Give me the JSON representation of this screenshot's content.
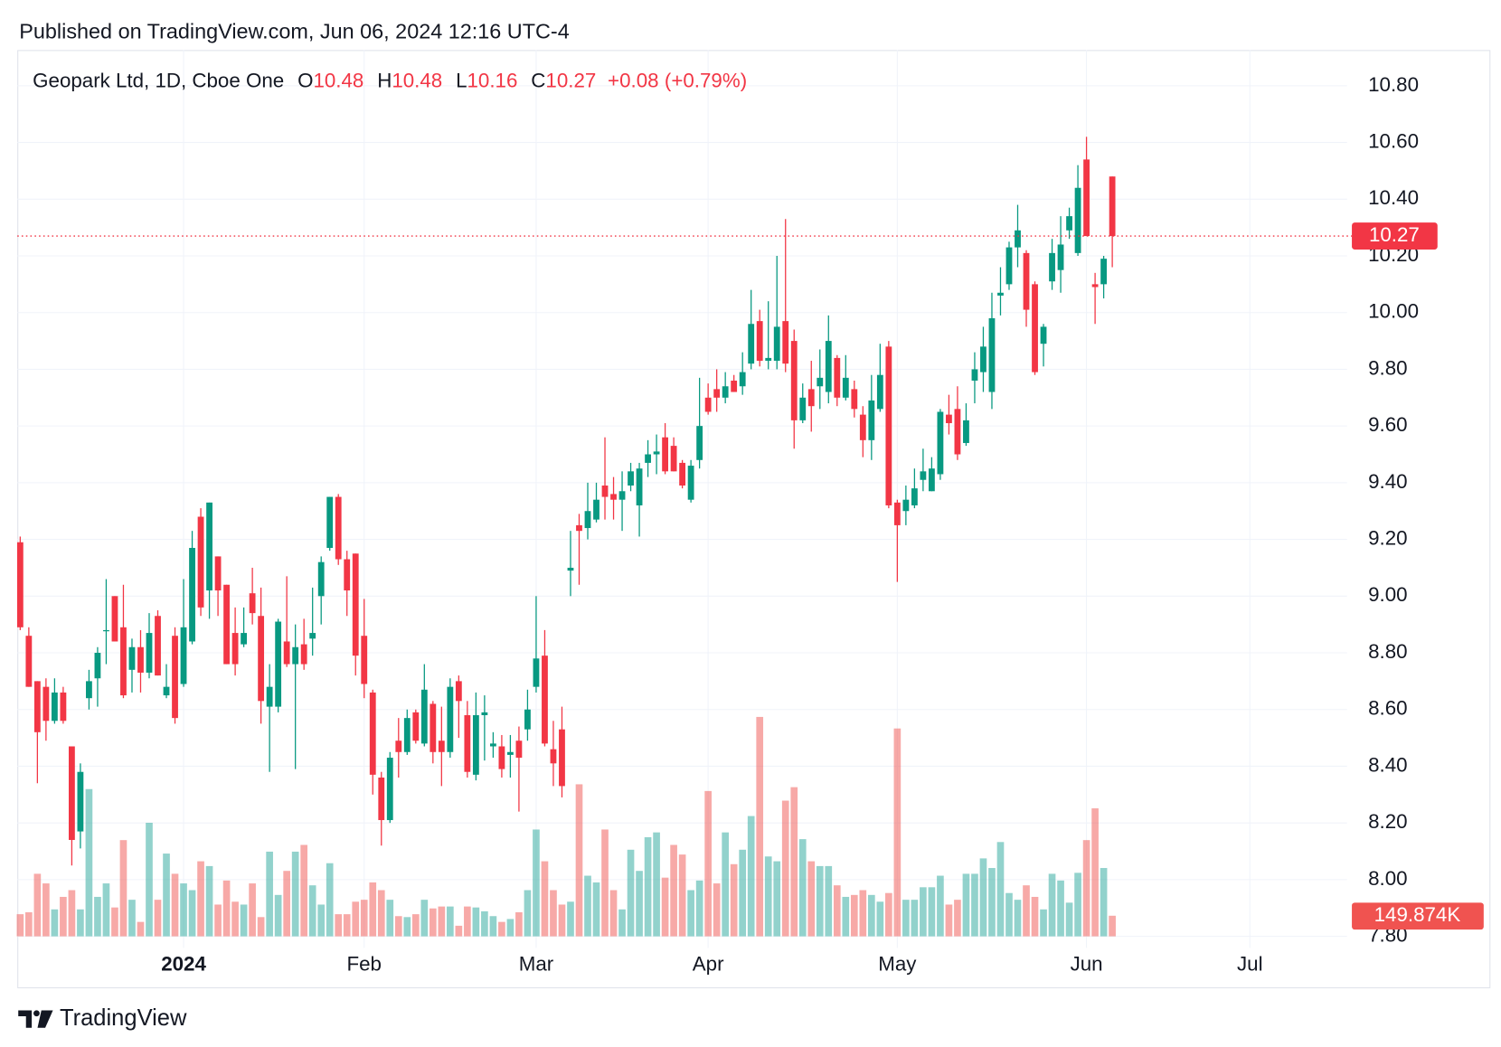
{
  "header": "Published on TradingView.com, Jun 06, 2024 12:16 UTC-4",
  "footer": "TradingView",
  "chart_data": {
    "type": "candlestick",
    "legend": {
      "name": "Geopark Ltd, 1D, Cboe One",
      "items": [
        {
          "label": "O",
          "value": 10.48
        },
        {
          "label": "H",
          "value": 10.48
        },
        {
          "label": "L",
          "value": 10.16
        },
        {
          "label": "C",
          "value": 10.27
        }
      ],
      "change": "+0.08",
      "change_percent": "(+0.79%)"
    },
    "last_price": 10.27,
    "ylim": [
      7.8,
      10.926
    ],
    "yticks": [
      {
        "value": 7.8,
        "label": "7.80"
      },
      {
        "value": 8,
        "label": "8.00"
      },
      {
        "value": 8.2,
        "label": "8.20"
      },
      {
        "value": 8.4,
        "label": "8.40"
      },
      {
        "value": 8.6,
        "label": "8.60"
      },
      {
        "value": 8.8,
        "label": "8.80"
      },
      {
        "value": 9,
        "label": "9.00"
      },
      {
        "value": 9.2,
        "label": "9.20"
      },
      {
        "value": 9.4,
        "label": "9.40"
      },
      {
        "value": 9.6,
        "label": "9.60"
      },
      {
        "value": 9.8,
        "label": "9.80"
      },
      {
        "value": 10,
        "label": "10.00"
      },
      {
        "value": 10.2,
        "label": "10.20"
      },
      {
        "value": 10.4,
        "label": "10.40"
      },
      {
        "value": 10.6,
        "label": "10.60"
      },
      {
        "value": 10.8,
        "label": "10.80"
      }
    ],
    "y2lim": [
      0,
      6447000
    ],
    "grid": true,
    "categories": [
      null,
      null,
      null,
      null,
      null,
      null,
      null,
      null,
      null,
      null,
      null,
      null,
      null,
      null,
      null,
      null,
      null,
      null,
      null,
      "2024",
      null,
      null,
      null,
      null,
      null,
      null,
      null,
      null,
      null,
      null,
      null,
      null,
      null,
      null,
      null,
      null,
      null,
      null,
      null,
      null,
      "Feb",
      null,
      null,
      null,
      null,
      null,
      null,
      null,
      null,
      null,
      null,
      null,
      null,
      null,
      null,
      null,
      null,
      null,
      null,
      null,
      "Mar",
      null,
      null,
      null,
      null,
      null,
      null,
      null,
      null,
      null,
      null,
      null,
      null,
      null,
      null,
      null,
      null,
      null,
      null,
      null,
      "Apr",
      null,
      null,
      null,
      null,
      null,
      null,
      null,
      null,
      null,
      null,
      null,
      null,
      null,
      null,
      null,
      null,
      null,
      null,
      null,
      null,
      null,
      "May",
      null,
      null,
      null,
      null,
      null,
      null,
      null,
      null,
      null,
      null,
      null,
      null,
      null,
      null,
      null,
      null,
      null,
      null,
      null,
      null,
      null,
      "Jun",
      null,
      null,
      null,
      null,
      null,
      null,
      null,
      null,
      null,
      null,
      null,
      null,
      null,
      null,
      null,
      null,
      null,
      null,
      "Jul"
    ],
    "series": [
      {
        "type": "candlestick",
        "name": "Geopark Ltd, 1D, Cboe One",
        "up_color": "#089981",
        "down_color": "#f23645",
        "open": [
          9.19,
          8.86,
          8.7,
          8.68,
          8.56,
          8.66,
          8.47,
          8.17,
          8.64,
          8.71,
          8.88,
          9.0,
          8.89,
          8.74,
          8.82,
          8.73,
          8.93,
          8.65,
          8.86,
          8.69,
          8.84,
          9.28,
          9.02,
          9.14,
          9.04,
          8.87,
          8.83,
          9.01,
          8.93,
          8.61,
          8.61,
          8.84,
          8.76,
          8.83,
          8.85,
          9.0,
          9.17,
          9.35,
          9.13,
          9.15,
          8.86,
          8.66,
          8.36,
          8.21,
          8.49,
          8.45,
          8.59,
          8.48,
          8.62,
          8.49,
          8.45,
          8.7,
          8.58,
          8.37,
          8.58,
          8.47,
          8.47,
          8.44,
          8.49,
          8.53,
          8.68,
          8.79,
          8.46,
          8.53,
          9.09,
          9.25,
          9.24,
          9.27,
          9.39,
          9.36,
          9.34,
          9.39,
          9.32,
          9.47,
          9.5,
          9.56,
          9.53,
          9.47,
          9.34,
          9.48,
          9.7,
          9.73,
          9.7,
          9.76,
          9.74,
          9.82,
          9.97,
          9.83,
          9.83,
          9.97,
          9.9,
          9.62,
          9.73,
          9.74,
          9.72,
          9.84,
          9.7,
          9.73,
          9.64,
          9.55,
          9.66,
          9.88,
          9.33,
          9.3,
          9.32,
          9.41,
          9.37,
          9.43,
          9.64,
          9.66,
          9.54,
          9.76,
          9.79,
          9.72,
          10.06,
          10.1,
          10.23,
          10.21,
          10.1,
          9.89,
          10.11,
          10.15,
          10.29,
          10.21,
          10.54,
          10.1,
          10.1,
          10.48,
          null,
          null,
          null,
          null,
          null,
          null,
          null,
          null,
          null,
          null,
          null,
          null,
          null,
          null,
          null,
          null
        ],
        "high": [
          9.21,
          8.89,
          8.7,
          8.71,
          8.71,
          8.68,
          8.47,
          8.41,
          8.74,
          8.82,
          9.06,
          9.0,
          9.04,
          8.85,
          8.88,
          8.94,
          8.95,
          8.76,
          8.89,
          9.06,
          9.23,
          9.31,
          9.33,
          9.14,
          9.04,
          8.96,
          8.96,
          9.1,
          9.03,
          8.76,
          8.92,
          9.07,
          8.9,
          8.92,
          9.03,
          9.14,
          9.35,
          9.36,
          9.16,
          9.15,
          8.99,
          8.67,
          8.38,
          8.45,
          8.57,
          8.6,
          8.6,
          8.76,
          8.63,
          8.61,
          8.71,
          8.72,
          8.63,
          8.66,
          8.65,
          8.52,
          8.51,
          8.51,
          8.54,
          8.67,
          9.0,
          8.88,
          8.56,
          8.61,
          9.23,
          9.29,
          9.4,
          9.4,
          9.56,
          9.42,
          9.44,
          9.47,
          9.47,
          9.55,
          9.57,
          9.61,
          9.56,
          9.48,
          9.48,
          9.77,
          9.75,
          9.8,
          9.79,
          9.78,
          9.86,
          10.08,
          10.01,
          10.04,
          10.2,
          10.33,
          9.94,
          9.75,
          9.83,
          9.87,
          9.99,
          9.85,
          9.85,
          9.76,
          9.67,
          9.78,
          9.89,
          9.9,
          9.34,
          9.39,
          9.45,
          9.52,
          9.49,
          9.66,
          9.71,
          9.74,
          9.68,
          9.86,
          9.95,
          10.07,
          10.16,
          10.25,
          10.38,
          10.22,
          10.11,
          9.96,
          10.26,
          10.34,
          10.37,
          10.52,
          10.62,
          10.14,
          10.2,
          10.48,
          null,
          null,
          null,
          null,
          null,
          null,
          null,
          null,
          null,
          null,
          null,
          null,
          null,
          null,
          null,
          null
        ],
        "low": [
          8.88,
          8.68,
          8.34,
          8.49,
          8.55,
          8.55,
          8.05,
          8.11,
          8.6,
          8.61,
          8.76,
          8.84,
          8.64,
          8.66,
          8.66,
          8.71,
          8.72,
          8.64,
          8.55,
          8.68,
          8.83,
          8.93,
          8.92,
          8.93,
          8.76,
          8.72,
          8.82,
          8.9,
          8.55,
          8.38,
          8.59,
          8.75,
          8.39,
          8.74,
          8.79,
          8.9,
          9.16,
          9.11,
          8.93,
          8.72,
          8.64,
          8.3,
          8.12,
          8.2,
          8.36,
          8.44,
          8.48,
          8.47,
          8.41,
          8.33,
          8.43,
          8.5,
          8.36,
          8.35,
          8.42,
          8.43,
          8.36,
          8.36,
          8.24,
          8.49,
          8.66,
          8.47,
          8.33,
          8.29,
          9.0,
          9.04,
          9.2,
          9.26,
          9.27,
          9.27,
          9.23,
          9.37,
          9.21,
          9.42,
          9.43,
          9.43,
          9.44,
          9.38,
          9.33,
          9.45,
          9.64,
          9.65,
          9.68,
          9.72,
          9.71,
          9.8,
          9.81,
          9.8,
          9.8,
          9.79,
          9.52,
          9.61,
          9.58,
          9.66,
          9.68,
          9.67,
          9.69,
          9.63,
          9.49,
          9.48,
          9.65,
          9.31,
          9.05,
          9.25,
          9.31,
          9.37,
          9.37,
          9.41,
          9.57,
          9.48,
          9.53,
          9.68,
          9.72,
          9.66,
          9.99,
          10.08,
          10.16,
          9.95,
          9.78,
          9.81,
          10.08,
          10.07,
          10.26,
          10.2,
          10.27,
          9.96,
          10.05,
          10.16,
          null,
          null,
          null,
          null,
          null,
          null,
          null,
          null,
          null,
          null,
          null,
          null,
          null,
          null,
          null,
          null
        ],
        "close": [
          8.89,
          8.68,
          8.52,
          8.56,
          8.66,
          8.56,
          8.14,
          8.38,
          8.7,
          8.8,
          8.88,
          8.84,
          8.65,
          8.82,
          8.73,
          8.87,
          8.72,
          8.68,
          8.57,
          8.89,
          9.17,
          8.96,
          9.33,
          9.02,
          8.76,
          8.76,
          8.87,
          8.94,
          8.63,
          8.68,
          8.91,
          8.76,
          8.82,
          8.76,
          8.87,
          9.12,
          9.35,
          9.13,
          9.02,
          8.79,
          8.69,
          8.37,
          8.21,
          8.43,
          8.45,
          8.57,
          8.49,
          8.67,
          8.45,
          8.45,
          8.68,
          8.63,
          8.38,
          8.58,
          8.59,
          8.48,
          8.39,
          8.45,
          8.43,
          8.6,
          8.78,
          8.48,
          8.41,
          8.33,
          9.1,
          9.23,
          9.3,
          9.34,
          9.35,
          9.34,
          9.37,
          9.44,
          9.45,
          9.5,
          9.51,
          9.44,
          9.44,
          9.39,
          9.46,
          9.6,
          9.65,
          9.7,
          9.74,
          9.72,
          9.79,
          9.96,
          9.83,
          9.84,
          9.95,
          9.82,
          9.62,
          9.7,
          9.67,
          9.77,
          9.9,
          9.7,
          9.77,
          9.66,
          9.55,
          9.69,
          9.78,
          9.32,
          9.25,
          9.34,
          9.38,
          9.44,
          9.45,
          9.65,
          9.61,
          9.5,
          9.62,
          9.8,
          9.88,
          9.98,
          10.07,
          10.23,
          10.29,
          10.01,
          9.79,
          9.95,
          10.21,
          10.24,
          10.34,
          10.44,
          10.27,
          10.09,
          10.19,
          10.27,
          null,
          null,
          null,
          null,
          null,
          null,
          null,
          null,
          null,
          null,
          null,
          null,
          null,
          null,
          null,
          null
        ]
      },
      {
        "type": "bar",
        "axis": "y2",
        "up_color": "#26a69a",
        "down_color": "#ef5350",
        "opacity": 0.5,
        "label_color": "#f05350",
        "values": [
          161000,
          175000,
          455000,
          385000,
          196000,
          287000,
          336000,
          196000,
          1071000,
          287000,
          385000,
          210000,
          700000,
          266000,
          105000,
          826000,
          266000,
          602000,
          455000,
          385000,
          336000,
          546000,
          511000,
          231000,
          406000,
          252000,
          231000,
          385000,
          140000,
          616000,
          301000,
          476000,
          616000,
          665000,
          371000,
          231000,
          532000,
          161000,
          161000,
          252000,
          266000,
          392000,
          336000,
          266000,
          147000,
          140000,
          161000,
          266000,
          203000,
          217000,
          217000,
          77000,
          217000,
          210000,
          182000,
          147000,
          105000,
          126000,
          175000,
          336000,
          777000,
          546000,
          336000,
          231000,
          252000,
          1106000,
          441000,
          392000,
          777000,
          336000,
          196000,
          630000,
          476000,
          721000,
          756000,
          427000,
          665000,
          595000,
          336000,
          406000,
          1057000,
          385000,
          756000,
          525000,
          630000,
          875000,
          1596000,
          581000,
          546000,
          987000,
          1085000,
          707000,
          546000,
          511000,
          511000,
          371000,
          287000,
          301000,
          336000,
          301000,
          252000,
          315000,
          1512000,
          266000,
          266000,
          357000,
          357000,
          441000,
          231000,
          266000,
          455000,
          455000,
          567000,
          497000,
          686000,
          315000,
          266000,
          371000,
          287000,
          196000,
          455000,
          406000,
          245000,
          462000,
          700000,
          931000,
          497000,
          149874,
          null,
          null,
          null,
          null,
          null,
          null,
          null,
          null,
          null,
          null,
          null,
          null,
          null,
          null,
          null,
          null
        ],
        "value_labels": [
          null,
          null,
          null,
          null,
          null,
          null,
          null,
          null,
          null,
          null,
          null,
          null,
          null,
          null,
          null,
          null,
          null,
          null,
          null,
          null,
          null,
          null,
          null,
          null,
          null,
          null,
          null,
          null,
          null,
          null,
          null,
          null,
          null,
          null,
          null,
          null,
          null,
          null,
          null,
          null,
          null,
          null,
          null,
          null,
          null,
          null,
          null,
          null,
          null,
          null,
          null,
          null,
          null,
          null,
          null,
          null,
          null,
          null,
          null,
          null,
          null,
          null,
          null,
          null,
          null,
          null,
          null,
          null,
          null,
          null,
          null,
          null,
          null,
          null,
          null,
          null,
          null,
          null,
          null,
          null,
          null,
          null,
          null,
          null,
          null,
          null,
          null,
          null,
          null,
          null,
          null,
          null,
          null,
          null,
          null,
          null,
          null,
          null,
          null,
          null,
          null,
          null,
          null,
          null,
          null,
          null,
          null,
          null,
          null,
          null,
          null,
          null,
          null,
          null,
          null,
          null,
          null,
          null,
          null,
          null,
          null,
          null,
          null,
          null,
          null,
          null,
          null,
          "149.874K",
          null,
          null,
          null,
          null,
          null,
          null,
          null,
          null,
          null,
          null,
          null,
          null,
          null,
          null,
          null,
          null
        ]
      }
    ]
  }
}
